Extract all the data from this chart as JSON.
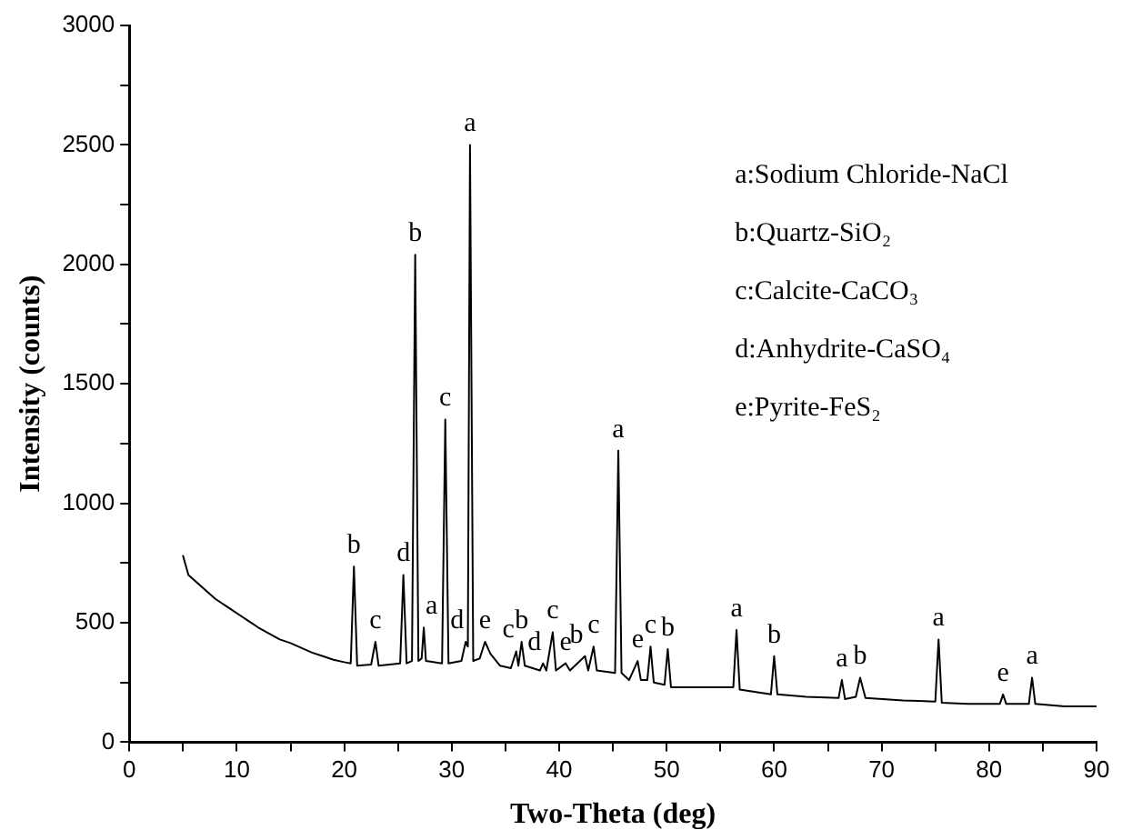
{
  "chart_data": {
    "type": "line",
    "xlabel": "Two-Theta (deg)",
    "ylabel": "Intensity (counts)",
    "xlim": [
      0,
      90
    ],
    "xticks": [
      0,
      {
        "value": 5,
        "label": null
      },
      10,
      {
        "value": 15,
        "label": null
      },
      20,
      {
        "value": 25,
        "label": null
      },
      30,
      {
        "value": 35,
        "label": null
      },
      40,
      {
        "value": 45,
        "label": null
      },
      50,
      {
        "value": 55,
        "label": null
      },
      60,
      {
        "value": 65,
        "label": null
      },
      70,
      {
        "value": 75,
        "label": null
      },
      80,
      {
        "value": 85,
        "label": null
      },
      90
    ],
    "ylim": [
      0,
      3000
    ],
    "yticks": [
      0,
      {
        "value": 250,
        "label": null
      },
      500,
      {
        "value": 750,
        "label": null
      },
      1000,
      {
        "value": 1250,
        "label": null
      },
      1500,
      {
        "value": 1750,
        "label": null
      },
      2000,
      {
        "value": 2250,
        "label": null
      },
      2500,
      {
        "value": 2750,
        "label": null
      },
      3000
    ],
    "grid": false,
    "marker": "none",
    "line_style": "solid",
    "series": [
      {
        "color": "#000000",
        "x": [
          5,
          5.5,
          6,
          7,
          8,
          9,
          10,
          11,
          12,
          13,
          14,
          15,
          16,
          17,
          18,
          19,
          20,
          20.6,
          20.9,
          21.2,
          22.5,
          22.9,
          23.2,
          25.2,
          25.5,
          25.8,
          26.3,
          26.6,
          26.9,
          27.2,
          27.4,
          27.6,
          29.1,
          29.4,
          29.7,
          30.9,
          31.3,
          31.5,
          31.7,
          32.0,
          32.6,
          33.1,
          33.6,
          34.5,
          35.5,
          36.0,
          36.2,
          36.5,
          36.8,
          38.2,
          38.5,
          38.8,
          39.4,
          39.7,
          40.6,
          41.0,
          42.4,
          42.7,
          43.2,
          43.5,
          45.2,
          45.5,
          45.8,
          46.5,
          47.3,
          47.6,
          48.2,
          48.5,
          48.8,
          49.8,
          50.1,
          50.4,
          53,
          56.2,
          56.5,
          56.8,
          59.7,
          60,
          60.3,
          63,
          66,
          66.3,
          66.6,
          67.6,
          68,
          68.5,
          72,
          75,
          75.3,
          75.6,
          78,
          81,
          81.3,
          81.6,
          83.7,
          84,
          84.3,
          87,
          90
        ],
        "values": [
          780,
          700,
          680,
          640,
          600,
          570,
          540,
          510,
          480,
          455,
          430,
          415,
          395,
          375,
          360,
          345,
          335,
          330,
          735,
          320,
          325,
          420,
          320,
          330,
          700,
          330,
          340,
          2040,
          340,
          350,
          480,
          340,
          330,
          1350,
          330,
          340,
          420,
          400,
          2500,
          340,
          350,
          420,
          370,
          320,
          310,
          380,
          320,
          420,
          320,
          300,
          330,
          300,
          460,
          300,
          330,
          300,
          360,
          300,
          400,
          300,
          290,
          1220,
          290,
          260,
          340,
          260,
          260,
          400,
          250,
          240,
          390,
          230,
          230,
          230,
          470,
          220,
          200,
          360,
          200,
          190,
          185,
          260,
          180,
          190,
          270,
          185,
          175,
          170,
          430,
          165,
          160,
          160,
          200,
          160,
          160,
          270,
          160,
          150,
          150
        ]
      }
    ],
    "annotations": [
      "a:Sodium Chloride-NaCl",
      "b:Quartz-SiO₂",
      "c:Calcite-CaCO₃",
      "d:Anhydrite-CaSO₄",
      "e:Pyrite-FeS₂",
      {
        "text": "b",
        "x": 20.9,
        "y": 735
      },
      {
        "text": "c",
        "x": 22.9,
        "y": 420
      },
      {
        "text": "d",
        "x": 25.5,
        "y": 700
      },
      {
        "text": "b",
        "x": 26.6,
        "y": 2040
      },
      {
        "text": "a",
        "x": 27.4,
        "y": 480
      },
      {
        "text": "c",
        "x": 29.4,
        "y": 1350
      },
      {
        "text": "d",
        "x": 31.3,
        "y": 420
      },
      {
        "text": "a",
        "x": 31.7,
        "y": 2500
      },
      {
        "text": "e",
        "x": 33.1,
        "y": 420
      },
      {
        "text": "c",
        "x": 36.0,
        "y": 380
      },
      {
        "text": "b",
        "x": 36.5,
        "y": 420
      },
      {
        "text": "d",
        "x": 38.5,
        "y": 330
      },
      {
        "text": "c",
        "x": 39.4,
        "y": 460
      },
      {
        "text": "e",
        "x": 40.6,
        "y": 330
      },
      {
        "text": "b",
        "x": 42.4,
        "y": 360
      },
      {
        "text": "c",
        "x": 43.2,
        "y": 400
      },
      {
        "text": "a",
        "x": 45.5,
        "y": 1220
      },
      {
        "text": "e",
        "x": 47.3,
        "y": 340
      },
      {
        "text": "c",
        "x": 48.5,
        "y": 400
      },
      {
        "text": "b",
        "x": 50.1,
        "y": 390
      },
      {
        "text": "a",
        "x": 56.5,
        "y": 470
      },
      {
        "text": "b",
        "x": 60,
        "y": 360
      },
      {
        "text": "a",
        "x": 66.3,
        "y": 260
      },
      {
        "text": "b",
        "x": 68,
        "y": 270
      },
      {
        "text": "a",
        "x": 75.3,
        "y": 430
      },
      {
        "text": "e",
        "x": 81.3,
        "y": 200
      },
      {
        "text": "a",
        "x": 84,
        "y": 270
      }
    ]
  }
}
